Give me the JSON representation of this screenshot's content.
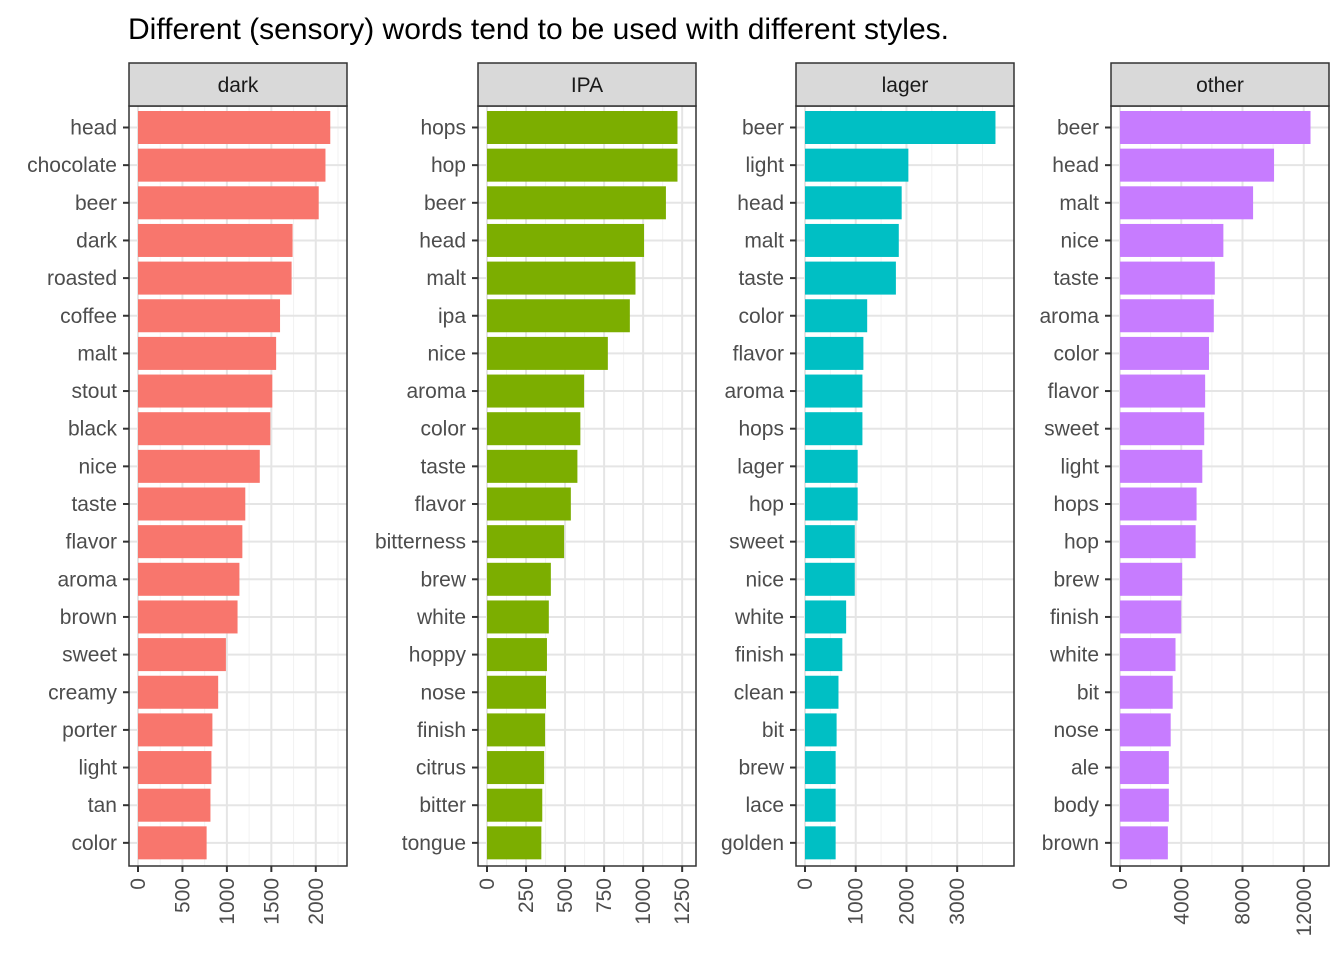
{
  "chart_data": {
    "type": "bar",
    "orientation": "horizontal",
    "title": "Different (sensory) words tend to be used with different styles.",
    "xlabel": "",
    "ylabel": "",
    "grid": true,
    "legend": "none",
    "panels": [
      {
        "name": "dark",
        "color": "#F8766D",
        "xlim": [
          0,
          2250
        ],
        "ticks": [
          0,
          500,
          1000,
          1500,
          2000
        ],
        "tick_labels": [
          "0",
          "500",
          "1000",
          "1500",
          "2000"
        ],
        "categories": [
          "head",
          "chocolate",
          "beer",
          "dark",
          "roasted",
          "coffee",
          "malt",
          "stout",
          "black",
          "nice",
          "taste",
          "flavor",
          "aroma",
          "brown",
          "sweet",
          "creamy",
          "porter",
          "light",
          "tan",
          "color"
        ],
        "values": [
          2163,
          2109,
          2033,
          1739,
          1728,
          1598,
          1554,
          1511,
          1489,
          1370,
          1207,
          1174,
          1141,
          1120,
          989,
          902,
          837,
          826,
          815,
          772
        ]
      },
      {
        "name": "IPA",
        "color": "#7CAE00",
        "xlim": [
          0,
          1281
        ],
        "ticks": [
          0,
          250,
          500,
          750,
          1000,
          1250
        ],
        "tick_labels": [
          "0",
          "250",
          "500",
          "750",
          "1000",
          "1250"
        ],
        "categories": [
          "hops",
          "hop",
          "beer",
          "head",
          "malt",
          "ipa",
          "nice",
          "aroma",
          "color",
          "taste",
          "flavor",
          "bitterness",
          "brew",
          "white",
          "hoppy",
          "nose",
          "finish",
          "citrus",
          "bitter",
          "tongue"
        ],
        "values": [
          1220,
          1220,
          1146,
          1006,
          951,
          915,
          774,
          622,
          598,
          579,
          537,
          494,
          409,
          396,
          384,
          378,
          372,
          366,
          354,
          348
        ]
      },
      {
        "name": "lager",
        "color": "#00BFC4",
        "xlim": [
          0,
          3943
        ],
        "ticks": [
          0,
          1000,
          2000,
          3000
        ],
        "tick_labels": [
          "0",
          "1000",
          "2000",
          "3000"
        ],
        "categories": [
          "beer",
          "light",
          "head",
          "malt",
          "taste",
          "color",
          "flavor",
          "aroma",
          "hops",
          "lager",
          "hop",
          "sweet",
          "nice",
          "white",
          "finish",
          "clean",
          "bit",
          "brew",
          "lace",
          "golden"
        ],
        "values": [
          3755,
          2038,
          1906,
          1849,
          1792,
          1226,
          1151,
          1132,
          1132,
          1038,
          1038,
          981,
          981,
          811,
          736,
          660,
          623,
          604,
          604,
          604
        ]
      },
      {
        "name": "other",
        "color": "#C77CFF",
        "xlim": [
          0,
          13060
        ],
        "ticks": [
          0,
          4000,
          8000,
          12000
        ],
        "tick_labels": [
          "0",
          "4000",
          "8000",
          "12000"
        ],
        "categories": [
          "beer",
          "head",
          "malt",
          "nice",
          "taste",
          "aroma",
          "color",
          "flavor",
          "sweet",
          "light",
          "hops",
          "hop",
          "brew",
          "finish",
          "white",
          "bit",
          "nose",
          "ale",
          "body",
          "brown"
        ],
        "values": [
          12440,
          10060,
          8690,
          6750,
          6190,
          6125,
          5810,
          5560,
          5500,
          5375,
          5000,
          4940,
          4060,
          4000,
          3625,
          3440,
          3310,
          3190,
          3190,
          3125
        ]
      }
    ]
  }
}
